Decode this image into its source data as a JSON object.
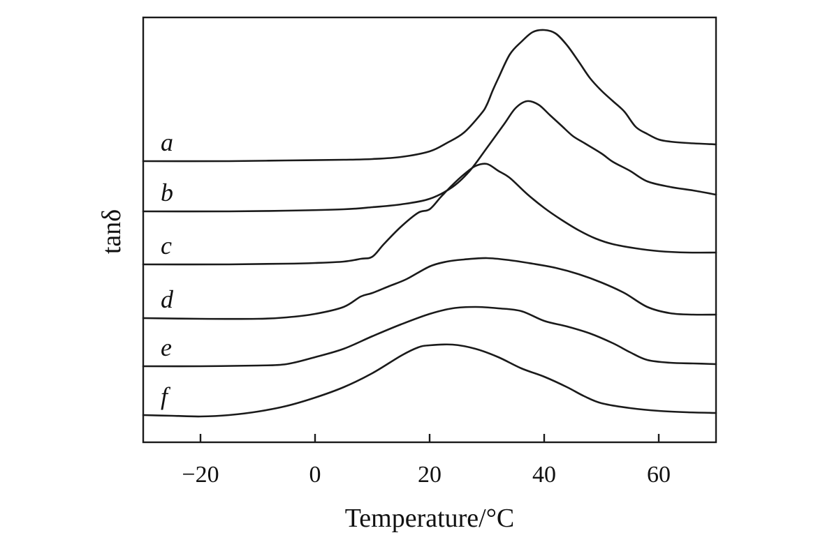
{
  "chart_data": {
    "type": "line",
    "title": "",
    "xlabel": "Temperature/°C",
    "ylabel": "tanδ",
    "xlim": [
      -30,
      70
    ],
    "x_ticks": [
      -20,
      0,
      20,
      40,
      60
    ],
    "x_tick_labels": [
      "−20",
      "0",
      "20",
      "40",
      "60"
    ],
    "y_ticks_shown": false,
    "legend": "inline-left",
    "grid": false,
    "series": [
      {
        "name": "a",
        "points": [
          [
            -30,
            231
          ],
          [
            -15,
            231
          ],
          [
            -5,
            230
          ],
          [
            5,
            229
          ],
          [
            10,
            228
          ],
          [
            15,
            225
          ],
          [
            20,
            217
          ],
          [
            23,
            205
          ],
          [
            26,
            190
          ],
          [
            29,
            163
          ],
          [
            30,
            150
          ],
          [
            31,
            130
          ],
          [
            32,
            112
          ],
          [
            34,
            78
          ],
          [
            36,
            60
          ],
          [
            38,
            46
          ],
          [
            40,
            43
          ],
          [
            42,
            48
          ],
          [
            44,
            65
          ],
          [
            46,
            88
          ],
          [
            48,
            112
          ],
          [
            50,
            130
          ],
          [
            52,
            145
          ],
          [
            54,
            160
          ],
          [
            56,
            182
          ],
          [
            58,
            192
          ],
          [
            60,
            200
          ],
          [
            62,
            203
          ],
          [
            65,
            205
          ],
          [
            70,
            207
          ]
        ]
      },
      {
        "name": "b",
        "points": [
          [
            -30,
            303
          ],
          [
            -15,
            303
          ],
          [
            -5,
            302
          ],
          [
            5,
            300
          ],
          [
            10,
            297
          ],
          [
            15,
            293
          ],
          [
            20,
            285
          ],
          [
            24,
            268
          ],
          [
            27,
            245
          ],
          [
            30,
            212
          ],
          [
            33,
            178
          ],
          [
            35,
            155
          ],
          [
            37,
            145
          ],
          [
            39,
            150
          ],
          [
            41,
            165
          ],
          [
            43,
            180
          ],
          [
            45,
            195
          ],
          [
            47,
            205
          ],
          [
            50,
            220
          ],
          [
            52,
            232
          ],
          [
            55,
            245
          ],
          [
            58,
            260
          ],
          [
            62,
            268
          ],
          [
            66,
            273
          ],
          [
            70,
            279
          ]
        ]
      },
      {
        "name": "c",
        "points": [
          [
            -30,
            379
          ],
          [
            -15,
            379
          ],
          [
            -5,
            378
          ],
          [
            0,
            377
          ],
          [
            5,
            375
          ],
          [
            8,
            371
          ],
          [
            10,
            368
          ],
          [
            12,
            350
          ],
          [
            15,
            325
          ],
          [
            18,
            305
          ],
          [
            20,
            300
          ],
          [
            22,
            282
          ],
          [
            24,
            265
          ],
          [
            26,
            250
          ],
          [
            28,
            238
          ],
          [
            30,
            235
          ],
          [
            32,
            245
          ],
          [
            34,
            255
          ],
          [
            37,
            278
          ],
          [
            40,
            298
          ],
          [
            43,
            315
          ],
          [
            46,
            330
          ],
          [
            49,
            342
          ],
          [
            52,
            350
          ],
          [
            56,
            356
          ],
          [
            60,
            360
          ],
          [
            65,
            362
          ],
          [
            70,
            362
          ]
        ]
      },
      {
        "name": "d",
        "points": [
          [
            -30,
            456
          ],
          [
            -20,
            457
          ],
          [
            -10,
            457
          ],
          [
            -5,
            455
          ],
          [
            0,
            450
          ],
          [
            5,
            440
          ],
          [
            8,
            425
          ],
          [
            10,
            420
          ],
          [
            13,
            410
          ],
          [
            16,
            400
          ],
          [
            20,
            382
          ],
          [
            23,
            375
          ],
          [
            26,
            372
          ],
          [
            30,
            370
          ],
          [
            34,
            373
          ],
          [
            38,
            378
          ],
          [
            42,
            384
          ],
          [
            46,
            393
          ],
          [
            50,
            405
          ],
          [
            54,
            420
          ],
          [
            58,
            440
          ],
          [
            62,
            449
          ],
          [
            66,
            451
          ],
          [
            70,
            451
          ]
        ]
      },
      {
        "name": "e",
        "points": [
          [
            -30,
            525
          ],
          [
            -20,
            525
          ],
          [
            -10,
            524
          ],
          [
            -5,
            522
          ],
          [
            0,
            512
          ],
          [
            5,
            500
          ],
          [
            10,
            482
          ],
          [
            15,
            465
          ],
          [
            20,
            450
          ],
          [
            24,
            442
          ],
          [
            28,
            440
          ],
          [
            32,
            442
          ],
          [
            36,
            446
          ],
          [
            40,
            460
          ],
          [
            44,
            468
          ],
          [
            48,
            478
          ],
          [
            52,
            492
          ],
          [
            55,
            505
          ],
          [
            58,
            516
          ],
          [
            62,
            520
          ],
          [
            66,
            521
          ],
          [
            70,
            522
          ]
        ]
      },
      {
        "name": "f",
        "points": [
          [
            -30,
            595
          ],
          [
            -25,
            596
          ],
          [
            -20,
            597
          ],
          [
            -15,
            595
          ],
          [
            -10,
            590
          ],
          [
            -5,
            582
          ],
          [
            0,
            570
          ],
          [
            5,
            555
          ],
          [
            10,
            535
          ],
          [
            15,
            510
          ],
          [
            18,
            498
          ],
          [
            20,
            495
          ],
          [
            24,
            494
          ],
          [
            28,
            500
          ],
          [
            32,
            512
          ],
          [
            36,
            528
          ],
          [
            40,
            540
          ],
          [
            44,
            555
          ],
          [
            47,
            568
          ],
          [
            50,
            578
          ],
          [
            55,
            585
          ],
          [
            60,
            589
          ],
          [
            65,
            591
          ],
          [
            70,
            592
          ]
        ]
      }
    ]
  }
}
